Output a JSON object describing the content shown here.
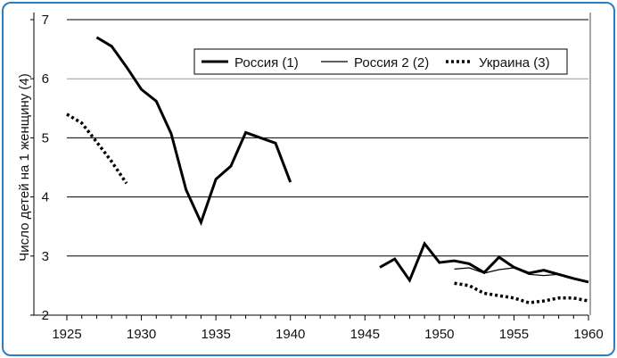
{
  "chart_data": {
    "type": "line",
    "title": "",
    "xlabel": "",
    "ylabel": "Число детей на 1 женщину (4)",
    "xlim": [
      1925,
      1960
    ],
    "ylim": [
      2,
      7
    ],
    "xticks": [
      1925,
      1930,
      1935,
      1940,
      1945,
      1950,
      1955,
      1960
    ],
    "yticks": [
      2,
      3,
      4,
      5,
      6,
      7
    ],
    "grid": "horizontal",
    "legend_position": "top-right",
    "series": [
      {
        "name": "Россия (1)",
        "style": "thick-solid",
        "segments": [
          {
            "x": [
              1927,
              1928,
              1929,
              1930,
              1931,
              1932,
              1933,
              1934,
              1935,
              1936,
              1937,
              1938,
              1939,
              1940
            ],
            "y": [
              6.7,
              6.55,
              6.2,
              5.82,
              5.62,
              5.07,
              4.12,
              3.57,
              4.3,
              4.52,
              5.09,
              5.0,
              4.91,
              4.25
            ]
          },
          {
            "x": [
              1946,
              1947,
              1948,
              1949,
              1950,
              1951,
              1952,
              1953,
              1954,
              1955,
              1956,
              1957,
              1958,
              1959,
              1960
            ],
            "y": [
              2.81,
              2.95,
              2.59,
              3.21,
              2.89,
              2.92,
              2.87,
              2.72,
              2.98,
              2.81,
              2.71,
              2.76,
              2.69,
              2.62,
              2.56
            ]
          }
        ]
      },
      {
        "name": "Россия 2 (2)",
        "style": "thin-solid",
        "segments": [
          {
            "x": [
              1951,
              1952,
              1953,
              1954,
              1955,
              1956,
              1957,
              1958,
              1959,
              1960
            ],
            "y": [
              2.78,
              2.8,
              2.71,
              2.77,
              2.8,
              2.69,
              2.67,
              2.69,
              2.62,
              2.56
            ]
          }
        ]
      },
      {
        "name": "Украина (3)",
        "style": "dotted",
        "segments": [
          {
            "x": [
              1925,
              1926,
              1927,
              1928,
              1929
            ],
            "y": [
              5.4,
              5.25,
              4.93,
              4.6,
              4.23
            ]
          },
          {
            "x": [
              1951,
              1952,
              1953,
              1954,
              1955,
              1956,
              1957,
              1958,
              1959,
              1960
            ],
            "y": [
              2.54,
              2.5,
              2.37,
              2.33,
              2.29,
              2.21,
              2.24,
              2.29,
              2.29,
              2.24
            ]
          }
        ]
      }
    ]
  }
}
